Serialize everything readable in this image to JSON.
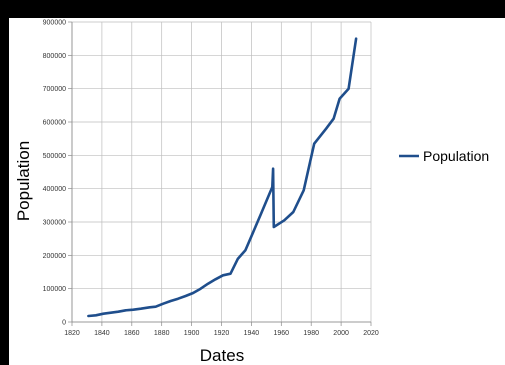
{
  "chart_data": {
    "type": "line",
    "title": "",
    "xlabel": "Dates",
    "ylabel": "Population",
    "xlim": [
      1820,
      2020
    ],
    "ylim": [
      0,
      900000
    ],
    "x_ticks": [
      "1820",
      "1840",
      "1860",
      "1880",
      "1900",
      "1920",
      "1940",
      "1960",
      "1980",
      "2000",
      "2020"
    ],
    "y_ticks": [
      "0",
      "100000",
      "200000",
      "300000",
      "400000",
      "500000",
      "600000",
      "700000",
      "800000",
      "900000"
    ],
    "grid": true,
    "legend_position": "right",
    "colors": {
      "series": "#1f4e8c"
    },
    "series": [
      {
        "name": "Population",
        "x": [
          1831,
          1836,
          1841,
          1846,
          1851,
          1856,
          1861,
          1866,
          1872,
          1876,
          1881,
          1886,
          1891,
          1896,
          1901,
          1906,
          1911,
          1916,
          1921,
          1926,
          1931,
          1936,
          1946,
          1954,
          1954.5,
          1955,
          1962,
          1968,
          1975,
          1982,
          1990,
          1995,
          1999,
          2005,
          2010
        ],
        "y": [
          18000,
          20000,
          25000,
          28000,
          31000,
          35000,
          37000,
          40000,
          44000,
          46000,
          55000,
          63000,
          70000,
          78000,
          87000,
          100000,
          115000,
          128000,
          140000,
          145000,
          190000,
          215000,
          320000,
          405000,
          460000,
          285000,
          305000,
          330000,
          395000,
          535000,
          580000,
          610000,
          670000,
          700000,
          850000
        ]
      }
    ]
  }
}
